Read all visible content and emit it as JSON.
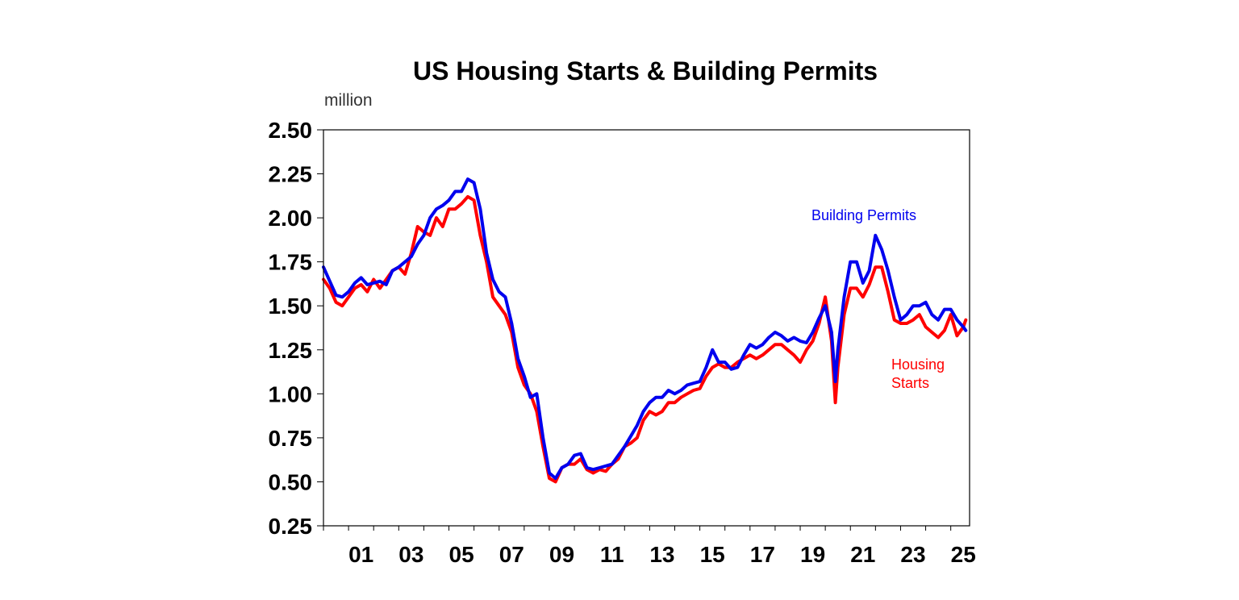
{
  "chart_data": {
    "type": "line",
    "title": "US Housing Starts & Building Permits",
    "unit": "million",
    "xlabel": "",
    "ylabel": "",
    "x_ticks": [
      "01",
      "03",
      "05",
      "07",
      "09",
      "11",
      "13",
      "15",
      "17",
      "19",
      "21",
      "23",
      "25"
    ],
    "y_ticks": [
      "2.50",
      "2.25",
      "2.00",
      "1.75",
      "1.50",
      "1.25",
      "1.00",
      "0.75",
      "0.50",
      "0.25"
    ],
    "ylim": [
      0.25,
      2.5
    ],
    "xlim": [
      2000.0,
      2025.75
    ],
    "grid": false,
    "series": [
      {
        "name": "Building Permits",
        "color": "#0000ee",
        "points": [
          [
            2000.0,
            1.72
          ],
          [
            2000.25,
            1.64
          ],
          [
            2000.5,
            1.56
          ],
          [
            2000.75,
            1.55
          ],
          [
            2001.0,
            1.58
          ],
          [
            2001.25,
            1.63
          ],
          [
            2001.5,
            1.66
          ],
          [
            2001.75,
            1.62
          ],
          [
            2002.0,
            1.63
          ],
          [
            2002.25,
            1.64
          ],
          [
            2002.5,
            1.62
          ],
          [
            2002.75,
            1.7
          ],
          [
            2003.0,
            1.72
          ],
          [
            2003.25,
            1.75
          ],
          [
            2003.5,
            1.78
          ],
          [
            2003.75,
            1.85
          ],
          [
            2004.0,
            1.9
          ],
          [
            2004.25,
            2.0
          ],
          [
            2004.5,
            2.05
          ],
          [
            2004.75,
            2.07
          ],
          [
            2005.0,
            2.1
          ],
          [
            2005.25,
            2.15
          ],
          [
            2005.5,
            2.15
          ],
          [
            2005.75,
            2.22
          ],
          [
            2006.0,
            2.2
          ],
          [
            2006.25,
            2.05
          ],
          [
            2006.5,
            1.8
          ],
          [
            2006.75,
            1.65
          ],
          [
            2007.0,
            1.58
          ],
          [
            2007.25,
            1.55
          ],
          [
            2007.5,
            1.4
          ],
          [
            2007.75,
            1.2
          ],
          [
            2008.0,
            1.1
          ],
          [
            2008.25,
            0.98
          ],
          [
            2008.5,
            1.0
          ],
          [
            2008.75,
            0.75
          ],
          [
            2009.0,
            0.55
          ],
          [
            2009.25,
            0.52
          ],
          [
            2009.5,
            0.58
          ],
          [
            2009.75,
            0.6
          ],
          [
            2010.0,
            0.65
          ],
          [
            2010.25,
            0.66
          ],
          [
            2010.5,
            0.58
          ],
          [
            2010.75,
            0.57
          ],
          [
            2011.0,
            0.58
          ],
          [
            2011.25,
            0.59
          ],
          [
            2011.5,
            0.6
          ],
          [
            2011.75,
            0.65
          ],
          [
            2012.0,
            0.7
          ],
          [
            2012.25,
            0.76
          ],
          [
            2012.5,
            0.82
          ],
          [
            2012.75,
            0.9
          ],
          [
            2013.0,
            0.95
          ],
          [
            2013.25,
            0.98
          ],
          [
            2013.5,
            0.98
          ],
          [
            2013.75,
            1.02
          ],
          [
            2014.0,
            1.0
          ],
          [
            2014.25,
            1.02
          ],
          [
            2014.5,
            1.05
          ],
          [
            2014.75,
            1.06
          ],
          [
            2015.0,
            1.07
          ],
          [
            2015.25,
            1.15
          ],
          [
            2015.5,
            1.25
          ],
          [
            2015.75,
            1.18
          ],
          [
            2016.0,
            1.18
          ],
          [
            2016.25,
            1.14
          ],
          [
            2016.5,
            1.15
          ],
          [
            2016.75,
            1.22
          ],
          [
            2017.0,
            1.28
          ],
          [
            2017.25,
            1.26
          ],
          [
            2017.5,
            1.28
          ],
          [
            2017.75,
            1.32
          ],
          [
            2018.0,
            1.35
          ],
          [
            2018.25,
            1.33
          ],
          [
            2018.5,
            1.3
          ],
          [
            2018.75,
            1.32
          ],
          [
            2019.0,
            1.3
          ],
          [
            2019.25,
            1.29
          ],
          [
            2019.5,
            1.35
          ],
          [
            2019.75,
            1.43
          ],
          [
            2020.0,
            1.5
          ],
          [
            2020.25,
            1.35
          ],
          [
            2020.4,
            1.07
          ],
          [
            2020.5,
            1.25
          ],
          [
            2020.75,
            1.55
          ],
          [
            2021.0,
            1.75
          ],
          [
            2021.25,
            1.75
          ],
          [
            2021.5,
            1.63
          ],
          [
            2021.75,
            1.7
          ],
          [
            2022.0,
            1.9
          ],
          [
            2022.25,
            1.82
          ],
          [
            2022.5,
            1.7
          ],
          [
            2022.75,
            1.55
          ],
          [
            2023.0,
            1.42
          ],
          [
            2023.25,
            1.45
          ],
          [
            2023.5,
            1.5
          ],
          [
            2023.75,
            1.5
          ],
          [
            2024.0,
            1.52
          ],
          [
            2024.25,
            1.45
          ],
          [
            2024.5,
            1.42
          ],
          [
            2024.75,
            1.48
          ],
          [
            2025.0,
            1.48
          ],
          [
            2025.25,
            1.42
          ],
          [
            2025.5,
            1.38
          ],
          [
            2025.6,
            1.36
          ]
        ]
      },
      {
        "name": "Housing Starts",
        "color": "#ff0000",
        "points": [
          [
            2000.0,
            1.65
          ],
          [
            2000.25,
            1.6
          ],
          [
            2000.5,
            1.52
          ],
          [
            2000.75,
            1.5
          ],
          [
            2001.0,
            1.55
          ],
          [
            2001.25,
            1.6
          ],
          [
            2001.5,
            1.62
          ],
          [
            2001.75,
            1.58
          ],
          [
            2002.0,
            1.65
          ],
          [
            2002.25,
            1.6
          ],
          [
            2002.5,
            1.65
          ],
          [
            2002.75,
            1.7
          ],
          [
            2003.0,
            1.72
          ],
          [
            2003.25,
            1.68
          ],
          [
            2003.5,
            1.8
          ],
          [
            2003.75,
            1.95
          ],
          [
            2004.0,
            1.92
          ],
          [
            2004.25,
            1.9
          ],
          [
            2004.5,
            2.0
          ],
          [
            2004.75,
            1.95
          ],
          [
            2005.0,
            2.05
          ],
          [
            2005.25,
            2.05
          ],
          [
            2005.5,
            2.08
          ],
          [
            2005.75,
            2.12
          ],
          [
            2006.0,
            2.1
          ],
          [
            2006.25,
            1.9
          ],
          [
            2006.5,
            1.75
          ],
          [
            2006.75,
            1.55
          ],
          [
            2007.0,
            1.5
          ],
          [
            2007.25,
            1.45
          ],
          [
            2007.5,
            1.35
          ],
          [
            2007.75,
            1.15
          ],
          [
            2008.0,
            1.05
          ],
          [
            2008.25,
            1.0
          ],
          [
            2008.5,
            0.9
          ],
          [
            2008.75,
            0.7
          ],
          [
            2009.0,
            0.52
          ],
          [
            2009.25,
            0.5
          ],
          [
            2009.5,
            0.58
          ],
          [
            2009.75,
            0.6
          ],
          [
            2010.0,
            0.6
          ],
          [
            2010.25,
            0.63
          ],
          [
            2010.5,
            0.57
          ],
          [
            2010.75,
            0.55
          ],
          [
            2011.0,
            0.57
          ],
          [
            2011.25,
            0.56
          ],
          [
            2011.5,
            0.6
          ],
          [
            2011.75,
            0.63
          ],
          [
            2012.0,
            0.7
          ],
          [
            2012.25,
            0.72
          ],
          [
            2012.5,
            0.75
          ],
          [
            2012.75,
            0.85
          ],
          [
            2013.0,
            0.9
          ],
          [
            2013.25,
            0.88
          ],
          [
            2013.5,
            0.9
          ],
          [
            2013.75,
            0.95
          ],
          [
            2014.0,
            0.95
          ],
          [
            2014.25,
            0.98
          ],
          [
            2014.5,
            1.0
          ],
          [
            2014.75,
            1.02
          ],
          [
            2015.0,
            1.03
          ],
          [
            2015.25,
            1.1
          ],
          [
            2015.5,
            1.15
          ],
          [
            2015.75,
            1.17
          ],
          [
            2016.0,
            1.15
          ],
          [
            2016.25,
            1.15
          ],
          [
            2016.5,
            1.18
          ],
          [
            2016.75,
            1.2
          ],
          [
            2017.0,
            1.22
          ],
          [
            2017.25,
            1.2
          ],
          [
            2017.5,
            1.22
          ],
          [
            2017.75,
            1.25
          ],
          [
            2018.0,
            1.28
          ],
          [
            2018.25,
            1.28
          ],
          [
            2018.5,
            1.25
          ],
          [
            2018.75,
            1.22
          ],
          [
            2019.0,
            1.18
          ],
          [
            2019.25,
            1.25
          ],
          [
            2019.5,
            1.3
          ],
          [
            2019.75,
            1.4
          ],
          [
            2020.0,
            1.55
          ],
          [
            2020.25,
            1.3
          ],
          [
            2020.4,
            0.95
          ],
          [
            2020.5,
            1.15
          ],
          [
            2020.75,
            1.45
          ],
          [
            2021.0,
            1.6
          ],
          [
            2021.25,
            1.6
          ],
          [
            2021.5,
            1.55
          ],
          [
            2021.75,
            1.62
          ],
          [
            2022.0,
            1.72
          ],
          [
            2022.25,
            1.72
          ],
          [
            2022.5,
            1.58
          ],
          [
            2022.75,
            1.42
          ],
          [
            2023.0,
            1.4
          ],
          [
            2023.25,
            1.4
          ],
          [
            2023.5,
            1.42
          ],
          [
            2023.75,
            1.45
          ],
          [
            2024.0,
            1.38
          ],
          [
            2024.25,
            1.35
          ],
          [
            2024.5,
            1.32
          ],
          [
            2024.75,
            1.36
          ],
          [
            2025.0,
            1.45
          ],
          [
            2025.25,
            1.33
          ],
          [
            2025.5,
            1.38
          ],
          [
            2025.6,
            1.42
          ]
        ]
      }
    ],
    "annotations": [
      {
        "text": "Building Permits",
        "color": "#0000ee"
      },
      {
        "text": "Housing",
        "color": "#ff0000"
      },
      {
        "text": "Starts",
        "color": "#ff0000"
      }
    ]
  }
}
